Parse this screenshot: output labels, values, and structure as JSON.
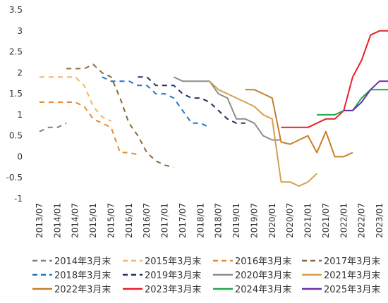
{
  "chart_data": {
    "type": "line",
    "x_ticks": [
      "2013/07",
      "2014/01",
      "2014/07",
      "2015/01",
      "2015/07",
      "2016/01",
      "2016/07",
      "2017/01",
      "2017/07",
      "2018/01",
      "2018/07",
      "2019/01",
      "2019/07",
      "2020/01",
      "2020/07",
      "2021/01",
      "2021/07",
      "2022/01",
      "2022/07",
      "2023/01"
    ],
    "ylim": [
      -1,
      3.5
    ],
    "y_ticks": [
      "-1",
      "-0.5",
      "0",
      "0.5",
      "1",
      "1.5",
      "2",
      "2.5",
      "3",
      "3.5"
    ],
    "grid": "none",
    "legend_position": "bottom",
    "series": [
      {
        "name": "2014年3月末",
        "color": "#808080",
        "dash": "dashed",
        "x": [
          "2013/07",
          "2013/10",
          "2014/01",
          "2014/04"
        ],
        "y": [
          0.6,
          0.7,
          0.7,
          0.8
        ]
      },
      {
        "name": "2015年3月末",
        "color": "#f2b36b",
        "dash": "dashed",
        "x": [
          "2013/07",
          "2014/01",
          "2014/07",
          "2014/10",
          "2015/01",
          "2015/04",
          "2015/07"
        ],
        "y": [
          1.9,
          1.9,
          1.9,
          1.7,
          1.2,
          0.95,
          0.85
        ]
      },
      {
        "name": "2016年3月末",
        "color": "#e58a2d",
        "dash": "dashed",
        "x": [
          "2013/07",
          "2014/01",
          "2014/07",
          "2014/10",
          "2015/01",
          "2015/04",
          "2015/07",
          "2015/10",
          "2016/01",
          "2016/04"
        ],
        "y": [
          1.3,
          1.3,
          1.3,
          1.2,
          0.9,
          0.8,
          0.7,
          0.1,
          0.1,
          0.05
        ]
      },
      {
        "name": "2017年3月末",
        "color": "#8b6a3a",
        "dash": "dashed",
        "x": [
          "2014/04",
          "2014/07",
          "2014/10",
          "2015/01",
          "2015/04",
          "2015/07",
          "2015/10",
          "2016/01",
          "2016/04",
          "2016/07",
          "2016/10",
          "2017/01",
          "2017/04"
        ],
        "y": [
          2.1,
          2.1,
          2.1,
          2.2,
          2.0,
          1.9,
          1.4,
          0.8,
          0.5,
          0.1,
          -0.1,
          -0.2,
          -0.25
        ]
      },
      {
        "name": "2018年3月末",
        "color": "#1f77c4",
        "dash": "dashed",
        "x": [
          "2015/04",
          "2015/07",
          "2015/10",
          "2016/01",
          "2016/04",
          "2016/07",
          "2016/10",
          "2017/01",
          "2017/04",
          "2017/07",
          "2017/10",
          "2018/01",
          "2018/04"
        ],
        "y": [
          1.9,
          1.8,
          1.8,
          1.8,
          1.7,
          1.7,
          1.5,
          1.5,
          1.4,
          1.1,
          0.8,
          0.8,
          0.7
        ]
      },
      {
        "name": "2019年3月末",
        "color": "#1f2f6b",
        "dash": "dashed",
        "x": [
          "2016/04",
          "2016/07",
          "2016/10",
          "2017/01",
          "2017/04",
          "2017/07",
          "2017/10",
          "2018/01",
          "2018/04",
          "2018/07",
          "2018/10",
          "2019/01",
          "2019/04"
        ],
        "y": [
          1.9,
          1.9,
          1.7,
          1.7,
          1.7,
          1.5,
          1.4,
          1.4,
          1.3,
          1.1,
          0.9,
          0.8,
          0.8
        ]
      },
      {
        "name": "2020年3月末",
        "color": "#8c8c8c",
        "dash": "solid",
        "x": [
          "2017/04",
          "2017/07",
          "2017/10",
          "2018/01",
          "2018/04",
          "2018/07",
          "2018/10",
          "2019/01",
          "2019/04",
          "2019/07",
          "2019/10",
          "2020/01",
          "2020/04"
        ],
        "y": [
          1.9,
          1.8,
          1.8,
          1.8,
          1.8,
          1.5,
          1.4,
          0.9,
          0.9,
          0.8,
          0.5,
          0.4,
          0.4
        ]
      },
      {
        "name": "2021年3月末",
        "color": "#d4a050",
        "dash": "solid",
        "x": [
          "2018/04",
          "2018/07",
          "2018/10",
          "2019/01",
          "2019/04",
          "2019/07",
          "2019/10",
          "2020/01",
          "2020/04",
          "2020/07",
          "2020/10",
          "2021/01",
          "2021/04"
        ],
        "y": [
          1.8,
          1.6,
          1.5,
          1.4,
          1.3,
          1.2,
          1.0,
          0.9,
          -0.6,
          -0.6,
          -0.7,
          -0.6,
          -0.4
        ]
      },
      {
        "name": "2022年3月末",
        "color": "#c87d2a",
        "dash": "solid",
        "x": [
          "2019/04",
          "2019/07",
          "2019/10",
          "2020/01",
          "2020/04",
          "2020/07",
          "2020/10",
          "2021/01",
          "2021/04",
          "2021/07",
          "2021/10",
          "2022/01",
          "2022/04"
        ],
        "y": [
          1.6,
          1.6,
          1.5,
          1.4,
          0.35,
          0.3,
          0.4,
          0.5,
          0.1,
          0.6,
          0.0,
          0.0,
          0.1
        ]
      },
      {
        "name": "2023年3月末",
        "color": "#e8202a",
        "dash": "solid",
        "x": [
          "2020/04",
          "2020/07",
          "2020/10",
          "2021/01",
          "2021/04",
          "2021/07",
          "2021/10",
          "2022/01",
          "2022/04",
          "2022/07",
          "2022/10",
          "2023/01",
          "2023/04"
        ],
        "y": [
          0.7,
          0.7,
          0.7,
          0.7,
          0.8,
          0.9,
          0.9,
          1.1,
          1.9,
          2.3,
          2.9,
          3.0,
          3.0
        ]
      },
      {
        "name": "2024年3月末",
        "color": "#20a84a",
        "dash": "solid",
        "x": [
          "2021/04",
          "2021/07",
          "2021/10",
          "2022/01",
          "2022/04",
          "2022/07",
          "2022/10",
          "2023/01",
          "2023/04"
        ],
        "y": [
          1.0,
          1.0,
          1.0,
          1.1,
          1.1,
          1.4,
          1.6,
          1.6,
          1.6
        ]
      },
      {
        "name": "2025年3月末",
        "color": "#6b2fa0",
        "dash": "solid",
        "x": [
          "2022/01",
          "2022/04",
          "2022/07",
          "2022/10",
          "2023/01",
          "2023/04"
        ],
        "y": [
          1.1,
          1.1,
          1.3,
          1.6,
          1.8,
          1.8
        ]
      }
    ]
  }
}
